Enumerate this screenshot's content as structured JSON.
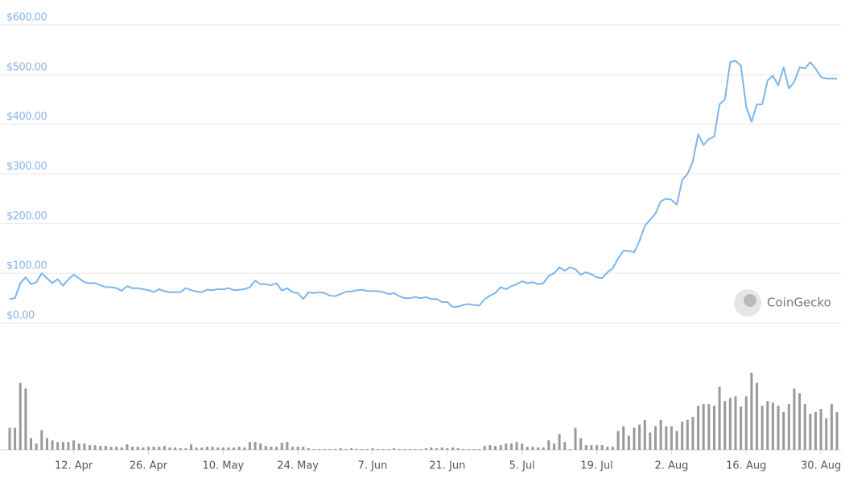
{
  "chart_data": {
    "type": "line",
    "watermark": "CoinGecko",
    "grid": true,
    "ylim": [
      0,
      600
    ],
    "yticks": [
      {
        "value": 0,
        "label": "$0.00"
      },
      {
        "value": 100,
        "label": "$100.00"
      },
      {
        "value": 200,
        "label": "$200.00"
      },
      {
        "value": 300,
        "label": "$300.00"
      },
      {
        "value": 400,
        "label": "$400.00"
      },
      {
        "value": 500,
        "label": "$500.00"
      },
      {
        "value": 600,
        "label": "$600.00"
      }
    ],
    "y2lim": [
      0,
      100
    ],
    "categories": [
      null,
      null,
      null,
      null,
      null,
      null,
      null,
      null,
      null,
      null,
      null,
      null,
      "12. Apr",
      null,
      null,
      null,
      null,
      null,
      null,
      null,
      null,
      null,
      null,
      null,
      null,
      null,
      "26. Apr",
      null,
      null,
      null,
      null,
      null,
      null,
      null,
      null,
      null,
      null,
      null,
      null,
      null,
      "10. May",
      null,
      null,
      null,
      null,
      null,
      null,
      null,
      null,
      null,
      null,
      null,
      null,
      null,
      "24. May",
      null,
      null,
      null,
      null,
      null,
      null,
      null,
      null,
      null,
      null,
      null,
      null,
      null,
      "7. Jun",
      null,
      null,
      null,
      null,
      null,
      null,
      null,
      null,
      null,
      null,
      null,
      null,
      null,
      "21. Jun",
      null,
      null,
      null,
      null,
      null,
      null,
      null,
      null,
      null,
      null,
      null,
      null,
      null,
      "5. Jul",
      null,
      null,
      null,
      null,
      null,
      null,
      null,
      null,
      null,
      null,
      null,
      null,
      null,
      "19. Jul",
      null,
      null,
      null,
      null,
      null,
      null,
      null,
      null,
      null,
      null,
      null,
      null,
      null,
      "2. Aug",
      null,
      null,
      null,
      null,
      null,
      null,
      null,
      null,
      null,
      null,
      null,
      null,
      null,
      "16. Aug",
      null,
      null,
      null,
      null,
      null,
      null,
      null,
      null,
      null,
      null,
      null,
      null,
      null,
      "30. Aug",
      null,
      null,
      null
    ],
    "series": [
      {
        "type": "line",
        "color": "#7cb5ec",
        "values": [
          48,
          50,
          80,
          92,
          78,
          82,
          100,
          90,
          80,
          88,
          75,
          88,
          97,
          90,
          82,
          80,
          80,
          76,
          72,
          72,
          70,
          65,
          74,
          70,
          70,
          68,
          66,
          62,
          68,
          64,
          62,
          62,
          62,
          70,
          66,
          63,
          62,
          67,
          66,
          68,
          68,
          70,
          66,
          67,
          68,
          72,
          85,
          78,
          78,
          76,
          80,
          65,
          70,
          62,
          60,
          48,
          62,
          60,
          62,
          60,
          55,
          54,
          58,
          63,
          63,
          66,
          67,
          64,
          64,
          64,
          62,
          58,
          60,
          54,
          50,
          50,
          52,
          50,
          52,
          48,
          48,
          42,
          42,
          32,
          33,
          36,
          38,
          36,
          35,
          48,
          55,
          60,
          72,
          68,
          74,
          78,
          84,
          80,
          82,
          78,
          80,
          95,
          100,
          112,
          105,
          112,
          108,
          97,
          102,
          98,
          92,
          90,
          102,
          110,
          130,
          145,
          145,
          142,
          165,
          195,
          208,
          220,
          245,
          250,
          248,
          238,
          288,
          300,
          325,
          380,
          358,
          370,
          375,
          440,
          450,
          525,
          528,
          518,
          435,
          405,
          440,
          440,
          488,
          498,
          478,
          515,
          472,
          485,
          515,
          512,
          525,
          512,
          495,
          492,
          492,
          492
        ]
      },
      {
        "type": "bar",
        "axis": "y2",
        "color": "#999999",
        "values": [
          28,
          28,
          85,
          78,
          15,
          8,
          25,
          15,
          12,
          10,
          10,
          10,
          12,
          8,
          8,
          6,
          6,
          5,
          5,
          4,
          4,
          3,
          7,
          4,
          4,
          3,
          4,
          4,
          4,
          5,
          3,
          3,
          2,
          2,
          7,
          3,
          3,
          4,
          4,
          3,
          3,
          3,
          3,
          4,
          3,
          10,
          10,
          8,
          5,
          4,
          4,
          9,
          10,
          4,
          4,
          4,
          2,
          1,
          1,
          1,
          1,
          1,
          2,
          1,
          2,
          1,
          1,
          1,
          2,
          1,
          1,
          1,
          2,
          1,
          1,
          1,
          1,
          1,
          2,
          3,
          2,
          3,
          2,
          3,
          2,
          1,
          1,
          1,
          1,
          5,
          6,
          5,
          6,
          8,
          8,
          10,
          8,
          4,
          4,
          3,
          3,
          12,
          8,
          20,
          10,
          1,
          28,
          15,
          6,
          6,
          6,
          6,
          4,
          4,
          24,
          30,
          18,
          28,
          32,
          38,
          22,
          30,
          38,
          30,
          30,
          24,
          36,
          38,
          42,
          56,
          58,
          58,
          56,
          80,
          62,
          66,
          68,
          55,
          68,
          98,
          85,
          56,
          62,
          60,
          56,
          48,
          58,
          78,
          72,
          58,
          46,
          48,
          52,
          40,
          58,
          48
        ]
      }
    ]
  }
}
